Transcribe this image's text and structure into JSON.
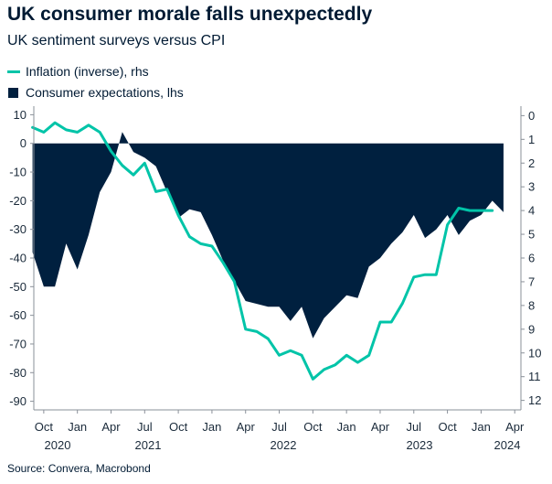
{
  "chart_data": {
    "type": "area",
    "title": "UK consumer morale falls unexpectedly",
    "subtitle": "UK sentiment surveys versus CPI",
    "source": "Source: Convera, Macrobond",
    "y_left_ticks": [
      "10",
      "0",
      "-10",
      "-20",
      "-30",
      "-40",
      "-50",
      "-60",
      "-70",
      "-80",
      "-90"
    ],
    "y_right_ticks": [
      "0",
      "1",
      "2",
      "3",
      "4",
      "5",
      "6",
      "7",
      "8",
      "9",
      "10",
      "11",
      "12"
    ],
    "x_tick_labels": [
      "Oct",
      "Jan",
      "Apr",
      "Jul",
      "Oct",
      "Jan",
      "Apr",
      "Jul",
      "Oct",
      "Jan",
      "Apr",
      "Jul",
      "Oct",
      "Jan",
      "Apr"
    ],
    "x_year_labels": [
      "2020",
      "2021",
      "2022",
      "2023",
      "2024"
    ],
    "ylim_left": [
      -93,
      13
    ],
    "ylim_right": [
      12.4,
      -0.4
    ],
    "series": [
      {
        "name": "Inflation (inverse), rhs",
        "color": "#00c4a8",
        "axis": "right",
        "inverted": true,
        "dates": [
          "2020-09",
          "2020-10",
          "2020-11",
          "2020-12",
          "2021-01",
          "2021-02",
          "2021-03",
          "2021-04",
          "2021-05",
          "2021-06",
          "2021-07",
          "2021-08",
          "2021-09",
          "2021-10",
          "2021-11",
          "2021-12",
          "2022-01",
          "2022-02",
          "2022-03",
          "2022-04",
          "2022-05",
          "2022-06",
          "2022-07",
          "2022-08",
          "2022-09",
          "2022-10",
          "2022-11",
          "2022-12",
          "2023-01",
          "2023-02",
          "2023-03",
          "2023-04",
          "2023-05",
          "2023-06",
          "2023-07",
          "2023-08",
          "2023-09",
          "2023-10",
          "2023-11",
          "2023-12",
          "2024-01",
          "2024-02"
        ],
        "values": [
          0.5,
          0.7,
          0.3,
          0.6,
          0.7,
          0.4,
          0.7,
          1.5,
          2.1,
          2.5,
          2.0,
          3.2,
          3.1,
          4.2,
          5.1,
          5.4,
          5.5,
          6.2,
          7.0,
          9.0,
          9.1,
          9.4,
          10.1,
          9.9,
          10.1,
          11.1,
          10.7,
          10.5,
          10.1,
          10.4,
          10.1,
          8.7,
          8.7,
          7.9,
          6.8,
          6.7,
          6.7,
          4.6,
          3.9,
          4.0,
          4.0,
          4.0
        ]
      },
      {
        "name": "Consumer expectations, lhs",
        "color": "#00203f",
        "axis": "left",
        "dates": [
          "2020-09",
          "2020-10",
          "2020-11",
          "2020-12",
          "2021-01",
          "2021-02",
          "2021-03",
          "2021-04",
          "2021-05",
          "2021-06",
          "2021-07",
          "2021-08",
          "2021-09",
          "2021-10",
          "2021-11",
          "2021-12",
          "2022-01",
          "2022-02",
          "2022-03",
          "2022-04",
          "2022-05",
          "2022-06",
          "2022-07",
          "2022-08",
          "2022-09",
          "2022-10",
          "2022-11",
          "2022-12",
          "2023-01",
          "2023-02",
          "2023-03",
          "2023-04",
          "2023-05",
          "2023-06",
          "2023-07",
          "2023-08",
          "2023-09",
          "2023-10",
          "2023-11",
          "2023-12",
          "2024-01",
          "2024-02",
          "2024-03"
        ],
        "values": [
          -38,
          -50,
          -50,
          -35,
          -44,
          -32,
          -17,
          -10,
          4,
          -3,
          -5,
          -8,
          -17,
          -26,
          -23,
          -24,
          -32,
          -41,
          -48,
          -55,
          -56,
          -57,
          -57,
          -62,
          -57,
          -68,
          -61,
          -57,
          -53,
          -54,
          -43,
          -40,
          -35,
          -31,
          -25,
          -33,
          -30,
          -25,
          -32,
          -27,
          -25,
          -20,
          -24
        ]
      }
    ],
    "legend": "top-left",
    "grid": false
  }
}
